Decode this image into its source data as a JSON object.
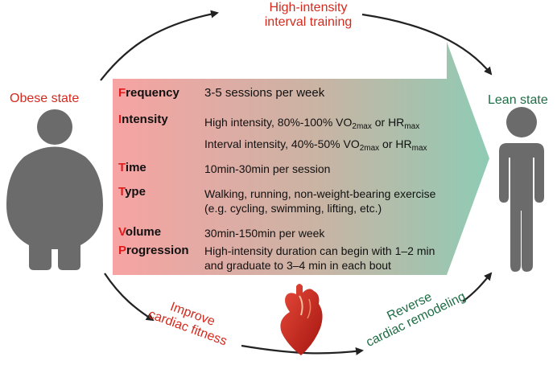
{
  "top_label": [
    "High-intensity",
    "interval training"
  ],
  "left_label": "Obese state",
  "right_label": "Lean state",
  "bottom_left_label": [
    "Improve",
    "cardiac fitness"
  ],
  "bottom_right_label": [
    "Reverse",
    "cardiac remodeling"
  ],
  "rows": {
    "frequency": {
      "first": "F",
      "rest": "requency",
      "desc": "3-5 sessions per week"
    },
    "intensity": {
      "first": "I",
      "rest": "ntensity",
      "line1": {
        "pre": "High intensity, 80%-100% VO",
        "sub1": "2max",
        "mid": " or HR",
        "sub2": "max"
      },
      "line2": {
        "pre": "Interval intensity, 40%-50% VO",
        "sub1": "2max",
        "mid": " or HR",
        "sub2": "max"
      }
    },
    "time": {
      "first": "T",
      "rest": "ime",
      "desc": "10min-30min per session"
    },
    "type": {
      "first": "T",
      "rest": "ype",
      "desc": [
        "Walking, running, non-weight-bearing exercise",
        "(e.g. cycling, swimming, lifting, etc.)"
      ]
    },
    "volume": {
      "first": "V",
      "rest": "olume",
      "desc": "30min-150min per week"
    },
    "progression": {
      "first": "P",
      "rest": "rogression",
      "desc": [
        "High-intensity duration can begin with 1–2 min",
        "and graduate to 3–4 min in each bout"
      ]
    }
  },
  "colors": {
    "red": "#d42a1e",
    "green": "#1e6e45",
    "arrow_gradient_start": "#f7a3a3",
    "arrow_gradient_end": "#8fcbb4",
    "figure": "#6b6b6b"
  },
  "icons": [
    "obese-person-icon",
    "lean-person-icon",
    "heart-icon"
  ]
}
